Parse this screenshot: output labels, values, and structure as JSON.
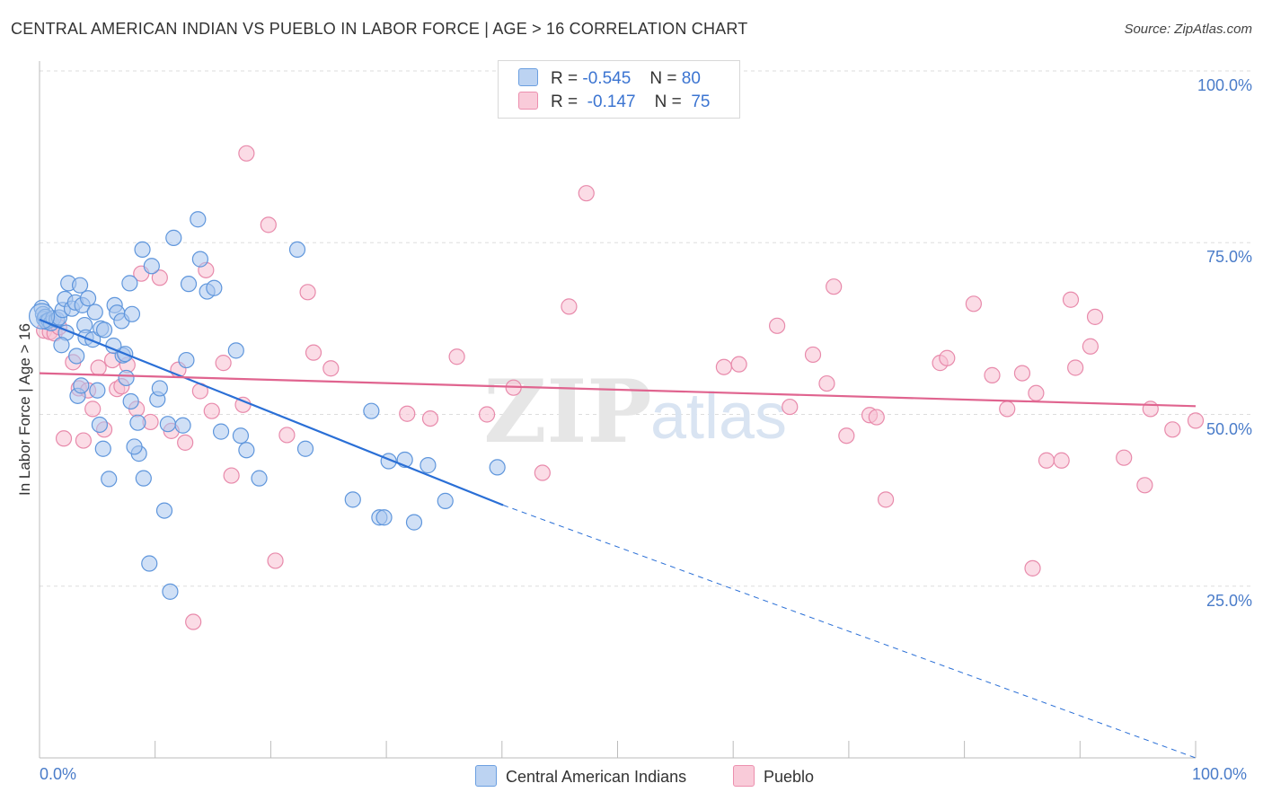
{
  "title": "CENTRAL AMERICAN INDIAN VS PUEBLO IN LABOR FORCE | AGE > 16 CORRELATION CHART",
  "source": "Source: ZipAtlas.com",
  "watermark": {
    "zip": "ZIP",
    "atlas": "atlas"
  },
  "legend_top": {
    "rows": [
      {
        "r_label": "R =",
        "r_value": "-0.545",
        "n_label": "N =",
        "n_value": "80"
      },
      {
        "r_label": "R =",
        "r_value": "-0.147",
        "n_label": "N =",
        "n_value": "75"
      }
    ]
  },
  "legend_bottom": [
    "Central American Indians",
    "Pueblo"
  ],
  "colors": {
    "blue_fill": "#a9c7ee",
    "blue_stroke": "#5f96dc",
    "blue_line": "#2a6fd6",
    "pink_fill": "#f7c0d2",
    "pink_stroke": "#e88aab",
    "pink_line": "#e0648f",
    "tick_text": "#4a7cc9",
    "grid": "#dddddd"
  },
  "chart_data": {
    "type": "scatter",
    "title": "CENTRAL AMERICAN INDIAN VS PUEBLO IN LABOR FORCE | AGE > 16 CORRELATION CHART",
    "xlabel": "",
    "ylabel": "In Labor Force | Age > 16",
    "x_tick_labels": [
      "0.0%",
      "100.0%"
    ],
    "y_tick_labels": [
      "100.0%",
      "75.0%",
      "50.0%",
      "25.0%"
    ],
    "xlim": [
      0,
      100
    ],
    "ylim": [
      0,
      100
    ],
    "grid": true,
    "legend_position": "top-center",
    "series": [
      {
        "name": "Central American Indians",
        "R": -0.545,
        "N": 80,
        "trend": {
          "x0": 0,
          "y0": 63.8,
          "x1": 40.1,
          "y1": 36.8,
          "dashed_to_x": 100,
          "dashed_to_y": -2.7
        },
        "points": [
          [
            0.2,
            65.5
          ],
          [
            0.3,
            64.6
          ],
          [
            0.4,
            63.9
          ],
          [
            0.5,
            64.2
          ],
          [
            0.6,
            63.5
          ],
          [
            0.8,
            63.7
          ],
          [
            1.0,
            63.3
          ],
          [
            1.2,
            64.0
          ],
          [
            1.5,
            63.8
          ],
          [
            1.7,
            64.1
          ],
          [
            2.0,
            65.2
          ],
          [
            2.2,
            66.8
          ],
          [
            2.3,
            61.9
          ],
          [
            2.5,
            69.1
          ],
          [
            1.9,
            60.1
          ],
          [
            2.8,
            65.4
          ],
          [
            3.1,
            66.3
          ],
          [
            3.2,
            58.5
          ],
          [
            3.5,
            68.8
          ],
          [
            3.7,
            65.9
          ],
          [
            3.9,
            63.0
          ],
          [
            4.2,
            66.9
          ],
          [
            4.0,
            61.2
          ],
          [
            4.6,
            60.9
          ],
          [
            4.8,
            64.9
          ],
          [
            5.3,
            62.5
          ],
          [
            5.6,
            62.3
          ],
          [
            6.5,
            65.9
          ],
          [
            6.7,
            64.8
          ],
          [
            7.1,
            63.6
          ],
          [
            7.2,
            58.6
          ],
          [
            7.4,
            58.8
          ],
          [
            7.5,
            55.3
          ],
          [
            7.8,
            69.1
          ],
          [
            8.0,
            64.6
          ],
          [
            8.5,
            48.8
          ],
          [
            8.6,
            44.3
          ],
          [
            8.9,
            74.0
          ],
          [
            9.7,
            71.6
          ],
          [
            10.2,
            52.2
          ],
          [
            10.4,
            53.8
          ],
          [
            10.8,
            36.0
          ],
          [
            11.1,
            48.6
          ],
          [
            11.3,
            24.2
          ],
          [
            11.6,
            75.7
          ],
          [
            12.7,
            57.9
          ],
          [
            12.9,
            69.0
          ],
          [
            13.7,
            78.4
          ],
          [
            13.9,
            72.6
          ],
          [
            14.5,
            67.9
          ],
          [
            15.1,
            68.4
          ],
          [
            15.7,
            47.5
          ],
          [
            17.0,
            59.3
          ],
          [
            17.4,
            46.9
          ],
          [
            17.9,
            44.8
          ],
          [
            19.0,
            40.7
          ],
          [
            22.3,
            74.0
          ],
          [
            23.0,
            45.0
          ],
          [
            27.1,
            37.6
          ],
          [
            28.7,
            50.5
          ],
          [
            29.4,
            35.0
          ],
          [
            29.8,
            35.0
          ],
          [
            30.2,
            43.2
          ],
          [
            31.6,
            43.4
          ],
          [
            32.4,
            34.3
          ],
          [
            33.6,
            42.6
          ],
          [
            35.1,
            37.4
          ],
          [
            39.6,
            42.3
          ],
          [
            9.0,
            40.7
          ],
          [
            8.2,
            45.3
          ],
          [
            7.9,
            51.9
          ],
          [
            6.4,
            60.0
          ],
          [
            5.5,
            45.0
          ],
          [
            5.2,
            48.5
          ],
          [
            5.0,
            53.5
          ],
          [
            3.3,
            52.7
          ],
          [
            3.6,
            54.2
          ],
          [
            6.0,
            40.6
          ],
          [
            9.5,
            28.3
          ],
          [
            12.4,
            48.4
          ]
        ]
      },
      {
        "name": "Pueblo",
        "R": -0.147,
        "N": 75,
        "trend": {
          "x0": 0,
          "y0": 56.0,
          "x1": 100,
          "y1": 51.2
        },
        "points": [
          [
            0.4,
            62.2
          ],
          [
            0.9,
            62.0
          ],
          [
            1.3,
            61.8
          ],
          [
            1.7,
            62.7
          ],
          [
            2.1,
            46.5
          ],
          [
            2.9,
            57.6
          ],
          [
            3.4,
            53.8
          ],
          [
            3.8,
            46.2
          ],
          [
            4.2,
            53.5
          ],
          [
            4.6,
            50.8
          ],
          [
            5.1,
            56.8
          ],
          [
            5.6,
            47.8
          ],
          [
            6.3,
            57.9
          ],
          [
            6.7,
            53.7
          ],
          [
            7.1,
            54.1
          ],
          [
            7.6,
            57.2
          ],
          [
            8.4,
            50.8
          ],
          [
            8.8,
            70.5
          ],
          [
            9.6,
            48.9
          ],
          [
            10.4,
            69.9
          ],
          [
            11.4,
            47.6
          ],
          [
            12.0,
            56.5
          ],
          [
            12.6,
            45.9
          ],
          [
            13.3,
            19.8
          ],
          [
            13.9,
            53.4
          ],
          [
            14.4,
            71.0
          ],
          [
            14.9,
            50.5
          ],
          [
            15.9,
            57.5
          ],
          [
            16.6,
            41.1
          ],
          [
            17.6,
            51.4
          ],
          [
            17.9,
            88.0
          ],
          [
            19.8,
            77.6
          ],
          [
            20.4,
            28.7
          ],
          [
            21.4,
            47.0
          ],
          [
            23.2,
            67.8
          ],
          [
            23.7,
            59.0
          ],
          [
            25.2,
            56.7
          ],
          [
            31.8,
            50.1
          ],
          [
            33.8,
            49.4
          ],
          [
            36.1,
            58.4
          ],
          [
            38.7,
            50.0
          ],
          [
            41.0,
            53.9
          ],
          [
            43.5,
            41.5
          ],
          [
            45.8,
            65.7
          ],
          [
            47.3,
            82.2
          ],
          [
            59.2,
            56.9
          ],
          [
            60.5,
            57.3
          ],
          [
            63.8,
            62.9
          ],
          [
            64.9,
            51.1
          ],
          [
            66.9,
            58.7
          ],
          [
            68.1,
            54.5
          ],
          [
            68.7,
            68.6
          ],
          [
            69.8,
            46.9
          ],
          [
            71.8,
            49.9
          ],
          [
            72.4,
            49.6
          ],
          [
            73.2,
            37.6
          ],
          [
            77.9,
            57.5
          ],
          [
            78.5,
            58.2
          ],
          [
            80.8,
            66.1
          ],
          [
            82.4,
            55.7
          ],
          [
            83.7,
            50.8
          ],
          [
            85.0,
            56.0
          ],
          [
            85.9,
            27.6
          ],
          [
            86.2,
            53.1
          ],
          [
            87.1,
            43.3
          ],
          [
            88.4,
            43.3
          ],
          [
            89.2,
            66.7
          ],
          [
            89.6,
            56.8
          ],
          [
            90.9,
            59.9
          ],
          [
            91.3,
            64.2
          ],
          [
            93.8,
            43.7
          ],
          [
            95.6,
            39.7
          ],
          [
            96.1,
            50.8
          ],
          [
            98.0,
            47.8
          ],
          [
            100.0,
            49.1
          ]
        ]
      }
    ]
  }
}
